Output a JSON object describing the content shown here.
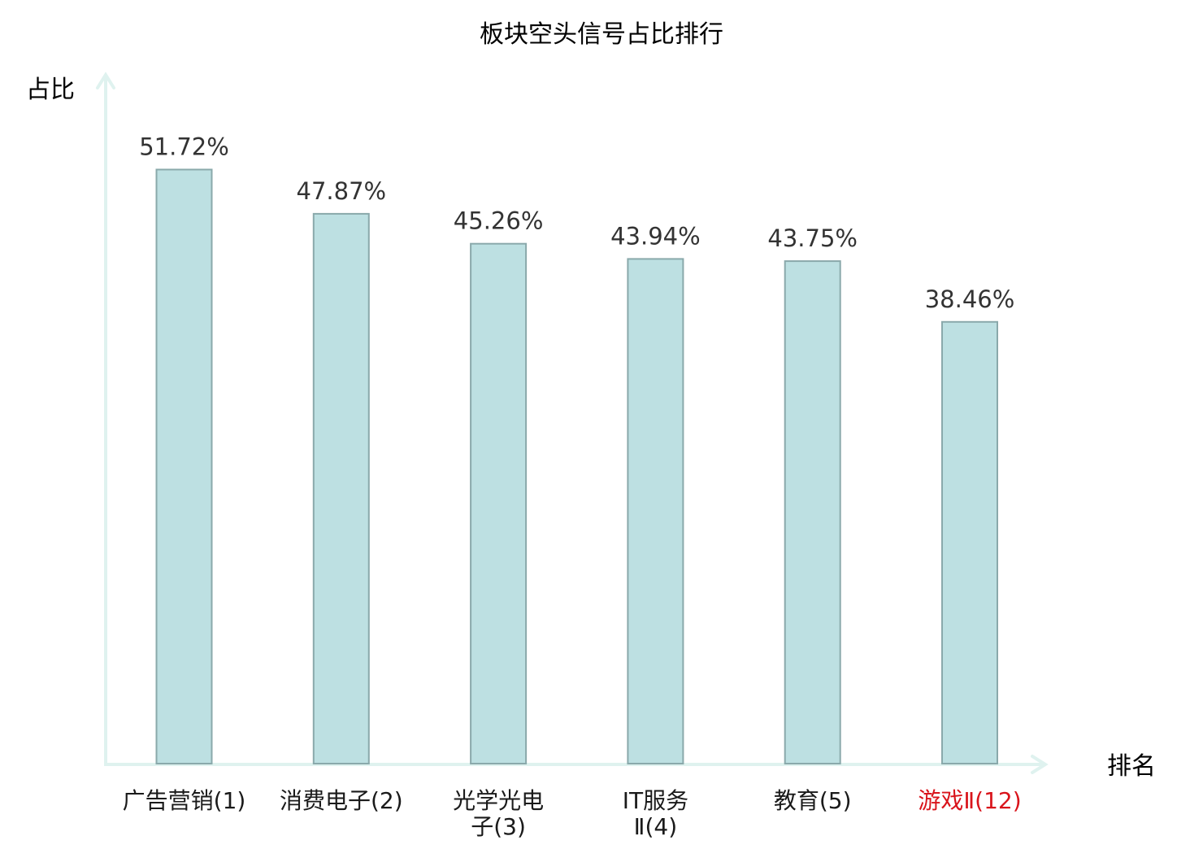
{
  "chart_data": {
    "type": "bar",
    "title": "板块空头信号占比排行",
    "ylabel": "占比",
    "xlabel": "排名",
    "categories": [
      [
        "广告营销(1)"
      ],
      [
        "消费电子(2)"
      ],
      [
        "光学光电",
        "子(3)"
      ],
      [
        "IT服务",
        "Ⅱ(4)"
      ],
      [
        "教育(5)"
      ],
      [
        "游戏Ⅱ(12)"
      ]
    ],
    "values": [
      51.72,
      47.87,
      45.26,
      43.94,
      43.75,
      38.46
    ],
    "value_labels": [
      "51.72%",
      "47.87%",
      "45.26%",
      "43.94%",
      "43.75%",
      "38.46%"
    ],
    "highlight_index": 5,
    "ylim": [
      0,
      60
    ],
    "grid": false,
    "legend": "none"
  },
  "colors": {
    "bar_fill": "#bde0e2",
    "bar_stroke": "#8aa9ab",
    "axis": "#dff2ef",
    "text": "#333333",
    "highlight_text": "#d9141b"
  }
}
